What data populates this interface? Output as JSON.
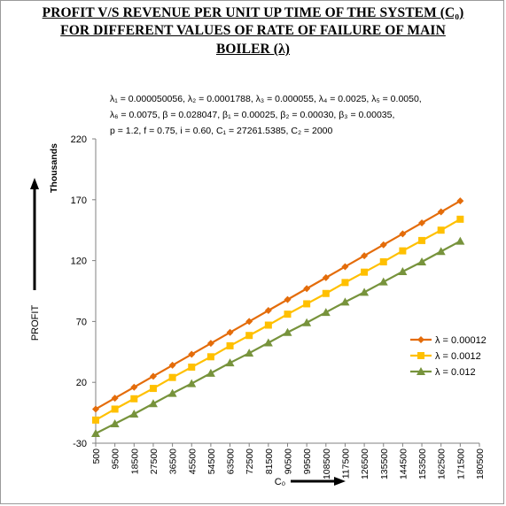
{
  "chart_data": {
    "type": "line",
    "title_lines": [
      "PROFIT V/S  REVENUE PER UNIT UP TIME OF THE SYSTEM (C₀)",
      "FOR  DIFFERENT VALUES OF RATE OF FAILURE OF MAIN",
      "BOILER (λ)"
    ],
    "parameters": [
      "λ₁ = 0.000050056, λ₂ = 0.0001788, λ₃ = 0.000055, λ₄ = 0.0025, λ₅ = 0.0050,",
      "λ₆ = 0.0075, β = 0.028047, β₁ = 0.00025, β₂ =  0.00030, β₃ =  0.00035,",
      "p =  1.2, f = 0.75, i = 0.60, C₁ = 27261.5385, C₂ = 2000"
    ],
    "xlabel": "C₀",
    "ylabel": "PROFIT",
    "yunit": "Thousands",
    "x_ticks": [
      "500",
      "9500",
      "18500",
      "27500",
      "36500",
      "45500",
      "54500",
      "63500",
      "72500",
      "81500",
      "90500",
      "99500",
      "108500",
      "117500",
      "126500",
      "135500",
      "144500",
      "153500",
      "162500",
      "171500",
      "180500"
    ],
    "y_ticks": [
      "-30",
      "20",
      "70",
      "120",
      "170",
      "220"
    ],
    "ylim": [
      -30,
      220
    ],
    "x": [
      500,
      9500,
      18500,
      27500,
      36500,
      45500,
      54500,
      63500,
      72500,
      81500,
      90500,
      99500,
      108500,
      117500,
      126500,
      135500,
      144500,
      153500,
      162500,
      171500
    ],
    "series": [
      {
        "name": "λ = 0.00012",
        "color": "#e46c0a",
        "marker": "diamond",
        "values": [
          -2,
          7,
          16,
          25,
          34,
          43,
          52,
          61,
          70,
          79,
          88,
          97,
          106,
          115,
          124,
          133,
          142,
          151,
          160,
          169
        ]
      },
      {
        "name": "λ = 0.0012",
        "color": "#ffc000",
        "marker": "square",
        "values": [
          -11,
          -2,
          6.5,
          15,
          24,
          32.5,
          41,
          50,
          58.5,
          67,
          76,
          84.5,
          93,
          102,
          110.5,
          119,
          128,
          136.5,
          145,
          154
        ]
      },
      {
        "name": "λ = 0.012",
        "color": "#77933c",
        "marker": "triangle",
        "values": [
          -22,
          -14,
          -6,
          2.5,
          11,
          19,
          27.5,
          36,
          44,
          52.5,
          61,
          69,
          77.5,
          86,
          94,
          102.5,
          111,
          119,
          127.5,
          136
        ]
      }
    ],
    "legend_position": "right"
  }
}
